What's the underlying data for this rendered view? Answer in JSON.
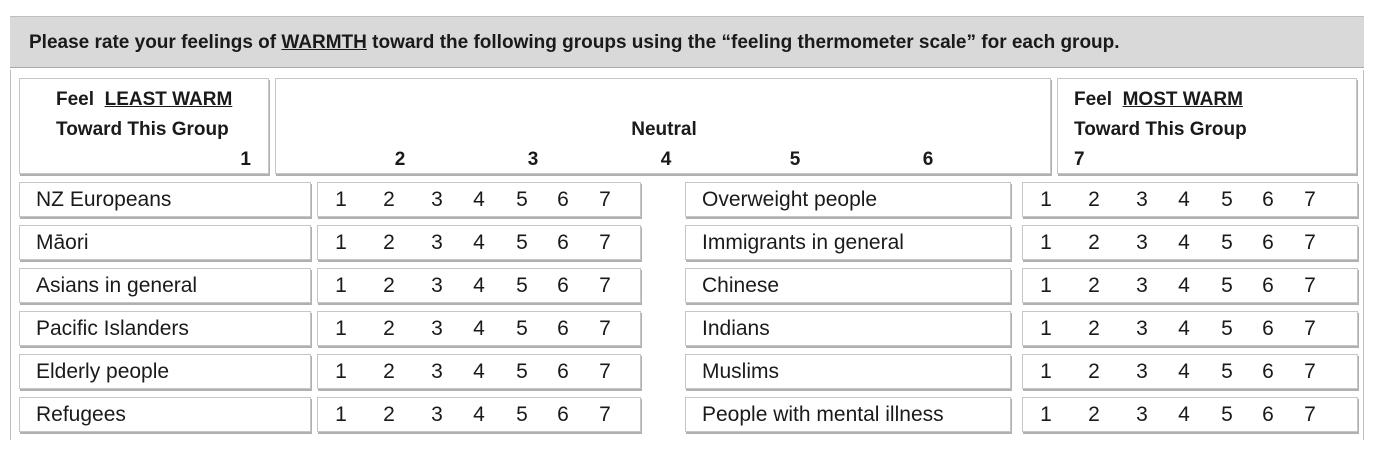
{
  "instruction": {
    "before": "Please rate your feelings of ",
    "emphasis": "WARMTH",
    "after": " toward the following groups using the “feeling thermometer scale” for each group."
  },
  "header": {
    "left": {
      "feel": "Feel",
      "emphasis": "LEAST WARM",
      "line2": "Toward This Group",
      "number": "1"
    },
    "middle": {
      "neutral": "Neutral",
      "numbers": [
        "2",
        "3",
        "4",
        "5",
        "6"
      ]
    },
    "right": {
      "feel": "Feel",
      "emphasis": "MOST WARM",
      "line2": "Toward This Group",
      "number": "7"
    }
  },
  "scale_values": [
    "1",
    "2",
    "3",
    "4",
    "5",
    "6",
    "7"
  ],
  "left_groups": [
    "NZ Europeans",
    "Māori",
    "Asians in general",
    "Pacific Islanders",
    "Elderly people",
    "Refugees"
  ],
  "right_groups": [
    "Overweight people",
    "Immigrants in general",
    "Chinese",
    "Indians",
    "Muslims",
    "People with mental illness"
  ]
}
